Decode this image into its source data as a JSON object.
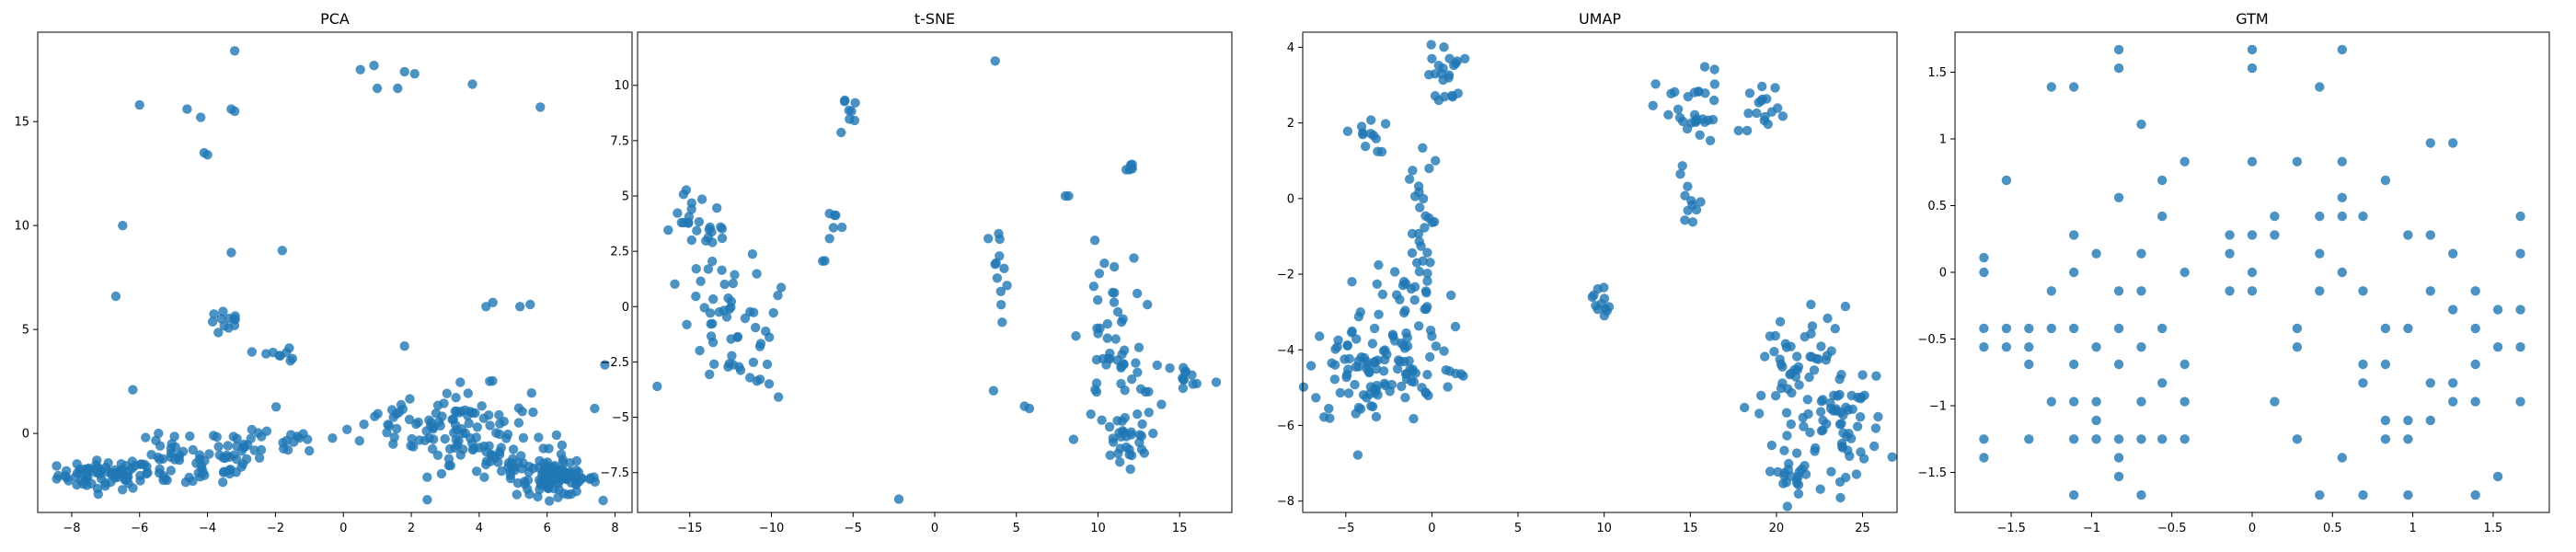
{
  "chart_data": [
    {
      "type": "scatter",
      "title": "PCA",
      "xlim": [
        -9,
        8.5
      ],
      "ylim": [
        -3.8,
        19.3
      ],
      "xticks": [
        -8,
        -6,
        -4,
        -2,
        0,
        2,
        4,
        6,
        8
      ],
      "yticks": [
        0,
        5,
        10,
        15
      ],
      "color": "#1f77b4",
      "clusters": [
        {
          "cx": -7.0,
          "cy": -2.0,
          "sx": 0.7,
          "sy": 0.35,
          "n": 70
        },
        {
          "cx": -5.0,
          "cy": -1.5,
          "sx": 0.7,
          "sy": 0.6,
          "n": 40
        },
        {
          "cx": -3.6,
          "cy": -1.0,
          "sx": 0.6,
          "sy": 0.8,
          "n": 35
        },
        {
          "cx": -1.5,
          "cy": -0.3,
          "sx": 1.0,
          "sy": 0.4,
          "n": 20
        },
        {
          "cx": 1.5,
          "cy": 0.7,
          "sx": 1.0,
          "sy": 0.5,
          "n": 20
        },
        {
          "cx": 3.5,
          "cy": 0.2,
          "sx": 1.0,
          "sy": 1.0,
          "n": 90
        },
        {
          "cx": 6.3,
          "cy": -2.2,
          "sx": 0.6,
          "sy": 0.4,
          "n": 80
        },
        {
          "cx": 5.0,
          "cy": -1.5,
          "sx": 0.9,
          "sy": 0.6,
          "n": 40
        },
        {
          "cx": -3.4,
          "cy": 5.3,
          "sx": 0.3,
          "sy": 0.3,
          "n": 12
        },
        {
          "cx": -2.3,
          "cy": 3.8,
          "sx": 0.5,
          "sy": 0.2,
          "n": 8
        }
      ],
      "points": [
        [
          -6.0,
          15.8
        ],
        [
          -4.6,
          15.6
        ],
        [
          -4.2,
          15.2
        ],
        [
          -3.3,
          15.6
        ],
        [
          -3.2,
          15.5
        ],
        [
          -4.1,
          13.5
        ],
        [
          -4.0,
          13.4
        ],
        [
          -3.2,
          18.4
        ],
        [
          0.5,
          17.5
        ],
        [
          0.9,
          17.7
        ],
        [
          1.8,
          17.4
        ],
        [
          2.1,
          17.3
        ],
        [
          1.0,
          16.6
        ],
        [
          1.6,
          16.6
        ],
        [
          3.8,
          16.8
        ],
        [
          5.8,
          15.7
        ],
        [
          -6.5,
          10.0
        ],
        [
          -3.3,
          8.7
        ],
        [
          -1.8,
          8.8
        ],
        [
          -6.7,
          6.6
        ],
        [
          4.2,
          6.1
        ],
        [
          4.4,
          6.3
        ],
        [
          5.2,
          6.1
        ],
        [
          5.5,
          6.2
        ],
        [
          1.8,
          4.2
        ],
        [
          -6.2,
          2.1
        ],
        [
          7.4,
          1.2
        ],
        [
          7.7,
          3.3
        ],
        [
          -1.5,
          3.6
        ]
      ]
    },
    {
      "type": "scatter",
      "title": "t-SNE",
      "xlim": [
        -18.2,
        18.2
      ],
      "ylim": [
        -9.3,
        12.4
      ],
      "xticks": [
        -15,
        -10,
        -5,
        0,
        5,
        10,
        15
      ],
      "yticks": [
        -7.5,
        -5.0,
        -2.5,
        0.0,
        2.5,
        5.0,
        7.5,
        10.0
      ],
      "color": "#1f77b4",
      "clusters": [
        {
          "cx": -15.0,
          "cy": 4.0,
          "sx": 0.5,
          "sy": 0.6,
          "n": 15
        },
        {
          "cx": -13.5,
          "cy": 2.5,
          "sx": 0.5,
          "sy": 0.8,
          "n": 15
        },
        {
          "cx": -12.5,
          "cy": -0.5,
          "sx": 1.2,
          "sy": 1.5,
          "n": 40
        },
        {
          "cx": -10.0,
          "cy": -2.0,
          "sx": 1.0,
          "sy": 1.2,
          "n": 12
        },
        {
          "cx": -6.2,
          "cy": 3.3,
          "sx": 0.4,
          "sy": 0.6,
          "n": 8
        },
        {
          "cx": -5.3,
          "cy": 8.8,
          "sx": 0.3,
          "sy": 0.7,
          "n": 8
        },
        {
          "cx": 3.8,
          "cy": 2.5,
          "sx": 0.4,
          "sy": 0.5,
          "n": 8
        },
        {
          "cx": 4.3,
          "cy": 0.5,
          "sx": 0.3,
          "sy": 0.3,
          "n": 4
        },
        {
          "cx": 10.5,
          "cy": -1.5,
          "sx": 0.8,
          "sy": 2.0,
          "n": 30
        },
        {
          "cx": 11.5,
          "cy": -6.0,
          "sx": 0.8,
          "sy": 0.6,
          "n": 30
        },
        {
          "cx": 12.0,
          "cy": -3.5,
          "sx": 1.0,
          "sy": 1.0,
          "n": 20
        },
        {
          "cx": 12.0,
          "cy": 6.2,
          "sx": 0.3,
          "sy": 0.2,
          "n": 6
        },
        {
          "cx": 15.5,
          "cy": -3.2,
          "sx": 1.0,
          "sy": 0.5,
          "n": 12
        }
      ],
      "points": [
        [
          -17.0,
          -3.6
        ],
        [
          -2.2,
          -8.7
        ],
        [
          3.7,
          11.1
        ],
        [
          3.6,
          -3.8
        ],
        [
          5.5,
          -4.5
        ],
        [
          5.8,
          -4.6
        ],
        [
          8.0,
          5.0
        ],
        [
          8.2,
          5.0
        ],
        [
          8.5,
          -6.0
        ],
        [
          11.0,
          1.8
        ],
        [
          12.2,
          2.2
        ],
        [
          12.4,
          0.6
        ]
      ]
    },
    {
      "type": "scatter",
      "title": "UMAP",
      "xlim": [
        -7.5,
        27.0
      ],
      "ylim": [
        -8.3,
        4.4
      ],
      "xticks": [
        -5,
        0,
        5,
        10,
        15,
        20,
        25
      ],
      "yticks": [
        -8,
        -6,
        -4,
        -2,
        0,
        2,
        4
      ],
      "color": "#1f77b4",
      "clusters": [
        {
          "cx": -4.0,
          "cy": -4.5,
          "sx": 1.6,
          "sy": 0.8,
          "n": 70
        },
        {
          "cx": -1.5,
          "cy": -3.5,
          "sx": 1.2,
          "sy": 1.2,
          "n": 60
        },
        {
          "cx": -0.8,
          "cy": -1.0,
          "sx": 0.4,
          "sy": 1.0,
          "n": 25
        },
        {
          "cx": -3.8,
          "cy": 1.7,
          "sx": 0.6,
          "sy": 0.25,
          "n": 12
        },
        {
          "cx": 0.8,
          "cy": 3.3,
          "sx": 0.5,
          "sy": 0.4,
          "n": 20
        },
        {
          "cx": 1.3,
          "cy": -4.7,
          "sx": 0.3,
          "sy": 0.3,
          "n": 6
        },
        {
          "cx": 9.8,
          "cy": -2.7,
          "sx": 0.25,
          "sy": 0.25,
          "n": 12
        },
        {
          "cx": 15.0,
          "cy": 2.2,
          "sx": 1.0,
          "sy": 0.6,
          "n": 30
        },
        {
          "cx": 15.0,
          "cy": 0.0,
          "sx": 0.6,
          "sy": 0.4,
          "n": 10
        },
        {
          "cx": 19.5,
          "cy": 2.2,
          "sx": 0.5,
          "sy": 0.4,
          "n": 15
        },
        {
          "cx": 21.5,
          "cy": -4.5,
          "sx": 1.5,
          "sy": 0.8,
          "n": 50
        },
        {
          "cx": 23.5,
          "cy": -6.0,
          "sx": 1.5,
          "sy": 0.8,
          "n": 60
        },
        {
          "cx": 21.0,
          "cy": -7.2,
          "sx": 0.8,
          "sy": 0.3,
          "n": 20
        }
      ],
      "points": [
        [
          -0.5,
          0.0
        ],
        [
          0.2,
          1.0
        ],
        [
          0.4,
          2.6
        ],
        [
          0.0,
          3.7
        ],
        [
          17.8,
          1.8
        ],
        [
          18.3,
          1.8
        ],
        [
          22.0,
          -2.8
        ]
      ]
    },
    {
      "type": "scatter",
      "title": "GTM",
      "xlim": [
        -1.85,
        1.85
      ],
      "ylim": [
        -1.8,
        1.8
      ],
      "xticks": [
        -1.5,
        -1.0,
        -0.5,
        0.0,
        0.5,
        1.0,
        1.5
      ],
      "yticks": [
        -1.5,
        -1.0,
        -0.5,
        0.0,
        0.5,
        1.0,
        1.5
      ],
      "color": "#1f77b4",
      "grid_step": 0.139,
      "points": [
        [
          -1.67,
          0.11
        ],
        [
          -1.67,
          0.0
        ],
        [
          -1.67,
          -0.42
        ],
        [
          -1.67,
          -0.56
        ],
        [
          -1.67,
          -1.25
        ],
        [
          -1.67,
          -1.39
        ],
        [
          -1.53,
          0.69
        ],
        [
          -1.53,
          -0.42
        ],
        [
          -1.53,
          -0.56
        ],
        [
          -1.39,
          -0.42
        ],
        [
          -1.39,
          -0.56
        ],
        [
          -1.39,
          -0.69
        ],
        [
          -1.39,
          -1.25
        ],
        [
          -1.25,
          1.39
        ],
        [
          -1.25,
          -0.14
        ],
        [
          -1.25,
          -0.42
        ],
        [
          -1.25,
          -0.97
        ],
        [
          -1.11,
          1.39
        ],
        [
          -1.11,
          0.28
        ],
        [
          -1.11,
          0.0
        ],
        [
          -1.11,
          -0.42
        ],
        [
          -1.11,
          -0.69
        ],
        [
          -1.11,
          -0.97
        ],
        [
          -1.11,
          -1.25
        ],
        [
          -1.11,
          -1.67
        ],
        [
          -0.97,
          0.14
        ],
        [
          -0.97,
          -0.56
        ],
        [
          -0.97,
          -0.97
        ],
        [
          -0.97,
          -1.11
        ],
        [
          -0.97,
          -1.25
        ],
        [
          -0.83,
          1.67
        ],
        [
          -0.83,
          1.53
        ],
        [
          -0.83,
          0.56
        ],
        [
          -0.83,
          -0.14
        ],
        [
          -0.83,
          -0.42
        ],
        [
          -0.83,
          -0.69
        ],
        [
          -0.83,
          -1.25
        ],
        [
          -0.83,
          -1.39
        ],
        [
          -0.83,
          -1.53
        ],
        [
          -0.69,
          1.11
        ],
        [
          -0.69,
          0.14
        ],
        [
          -0.69,
          -0.14
        ],
        [
          -0.69,
          -0.56
        ],
        [
          -0.69,
          -0.97
        ],
        [
          -0.69,
          -1.25
        ],
        [
          -0.69,
          -1.67
        ],
        [
          -0.56,
          0.69
        ],
        [
          -0.56,
          0.42
        ],
        [
          -0.56,
          -0.42
        ],
        [
          -0.56,
          -0.83
        ],
        [
          -0.56,
          -1.25
        ],
        [
          -0.42,
          0.83
        ],
        [
          -0.42,
          0.0
        ],
        [
          -0.42,
          -0.69
        ],
        [
          -0.42,
          -0.97
        ],
        [
          -0.42,
          -1.25
        ],
        [
          -0.14,
          0.28
        ],
        [
          -0.14,
          0.14
        ],
        [
          -0.14,
          -0.14
        ],
        [
          0.0,
          1.67
        ],
        [
          0.0,
          1.53
        ],
        [
          0.0,
          0.83
        ],
        [
          0.0,
          0.28
        ],
        [
          0.0,
          0.0
        ],
        [
          0.0,
          -0.14
        ],
        [
          0.14,
          0.42
        ],
        [
          0.14,
          0.28
        ],
        [
          0.14,
          -0.97
        ],
        [
          0.28,
          0.83
        ],
        [
          0.28,
          -0.42
        ],
        [
          0.28,
          -0.56
        ],
        [
          0.28,
          -1.25
        ],
        [
          0.42,
          1.39
        ],
        [
          0.42,
          0.42
        ],
        [
          0.42,
          0.14
        ],
        [
          0.42,
          -0.14
        ],
        [
          0.42,
          -1.67
        ],
        [
          0.56,
          1.67
        ],
        [
          0.56,
          0.83
        ],
        [
          0.56,
          0.56
        ],
        [
          0.56,
          0.42
        ],
        [
          0.56,
          0.0
        ],
        [
          0.56,
          -1.39
        ],
        [
          0.69,
          0.42
        ],
        [
          0.69,
          -0.14
        ],
        [
          0.69,
          -0.69
        ],
        [
          0.69,
          -0.83
        ],
        [
          0.69,
          -1.67
        ],
        [
          0.83,
          0.69
        ],
        [
          0.83,
          -0.42
        ],
        [
          0.83,
          -0.69
        ],
        [
          0.83,
          -1.11
        ],
        [
          0.83,
          -1.25
        ],
        [
          0.97,
          0.28
        ],
        [
          0.97,
          -0.42
        ],
        [
          0.97,
          -1.11
        ],
        [
          0.97,
          -1.25
        ],
        [
          0.97,
          -1.67
        ],
        [
          1.11,
          0.97
        ],
        [
          1.11,
          0.28
        ],
        [
          1.11,
          -0.14
        ],
        [
          1.11,
          -0.83
        ],
        [
          1.11,
          -1.11
        ],
        [
          1.25,
          0.97
        ],
        [
          1.25,
          0.14
        ],
        [
          1.25,
          -0.28
        ],
        [
          1.25,
          -0.83
        ],
        [
          1.25,
          -0.97
        ],
        [
          1.39,
          -0.14
        ],
        [
          1.39,
          -0.42
        ],
        [
          1.39,
          -0.69
        ],
        [
          1.39,
          -0.97
        ],
        [
          1.39,
          -1.67
        ],
        [
          1.53,
          -0.28
        ],
        [
          1.53,
          -0.56
        ],
        [
          1.53,
          -1.53
        ],
        [
          1.67,
          0.42
        ],
        [
          1.67,
          0.14
        ],
        [
          1.67,
          -0.28
        ],
        [
          1.67,
          -0.56
        ],
        [
          1.67,
          -0.97
        ]
      ]
    }
  ]
}
